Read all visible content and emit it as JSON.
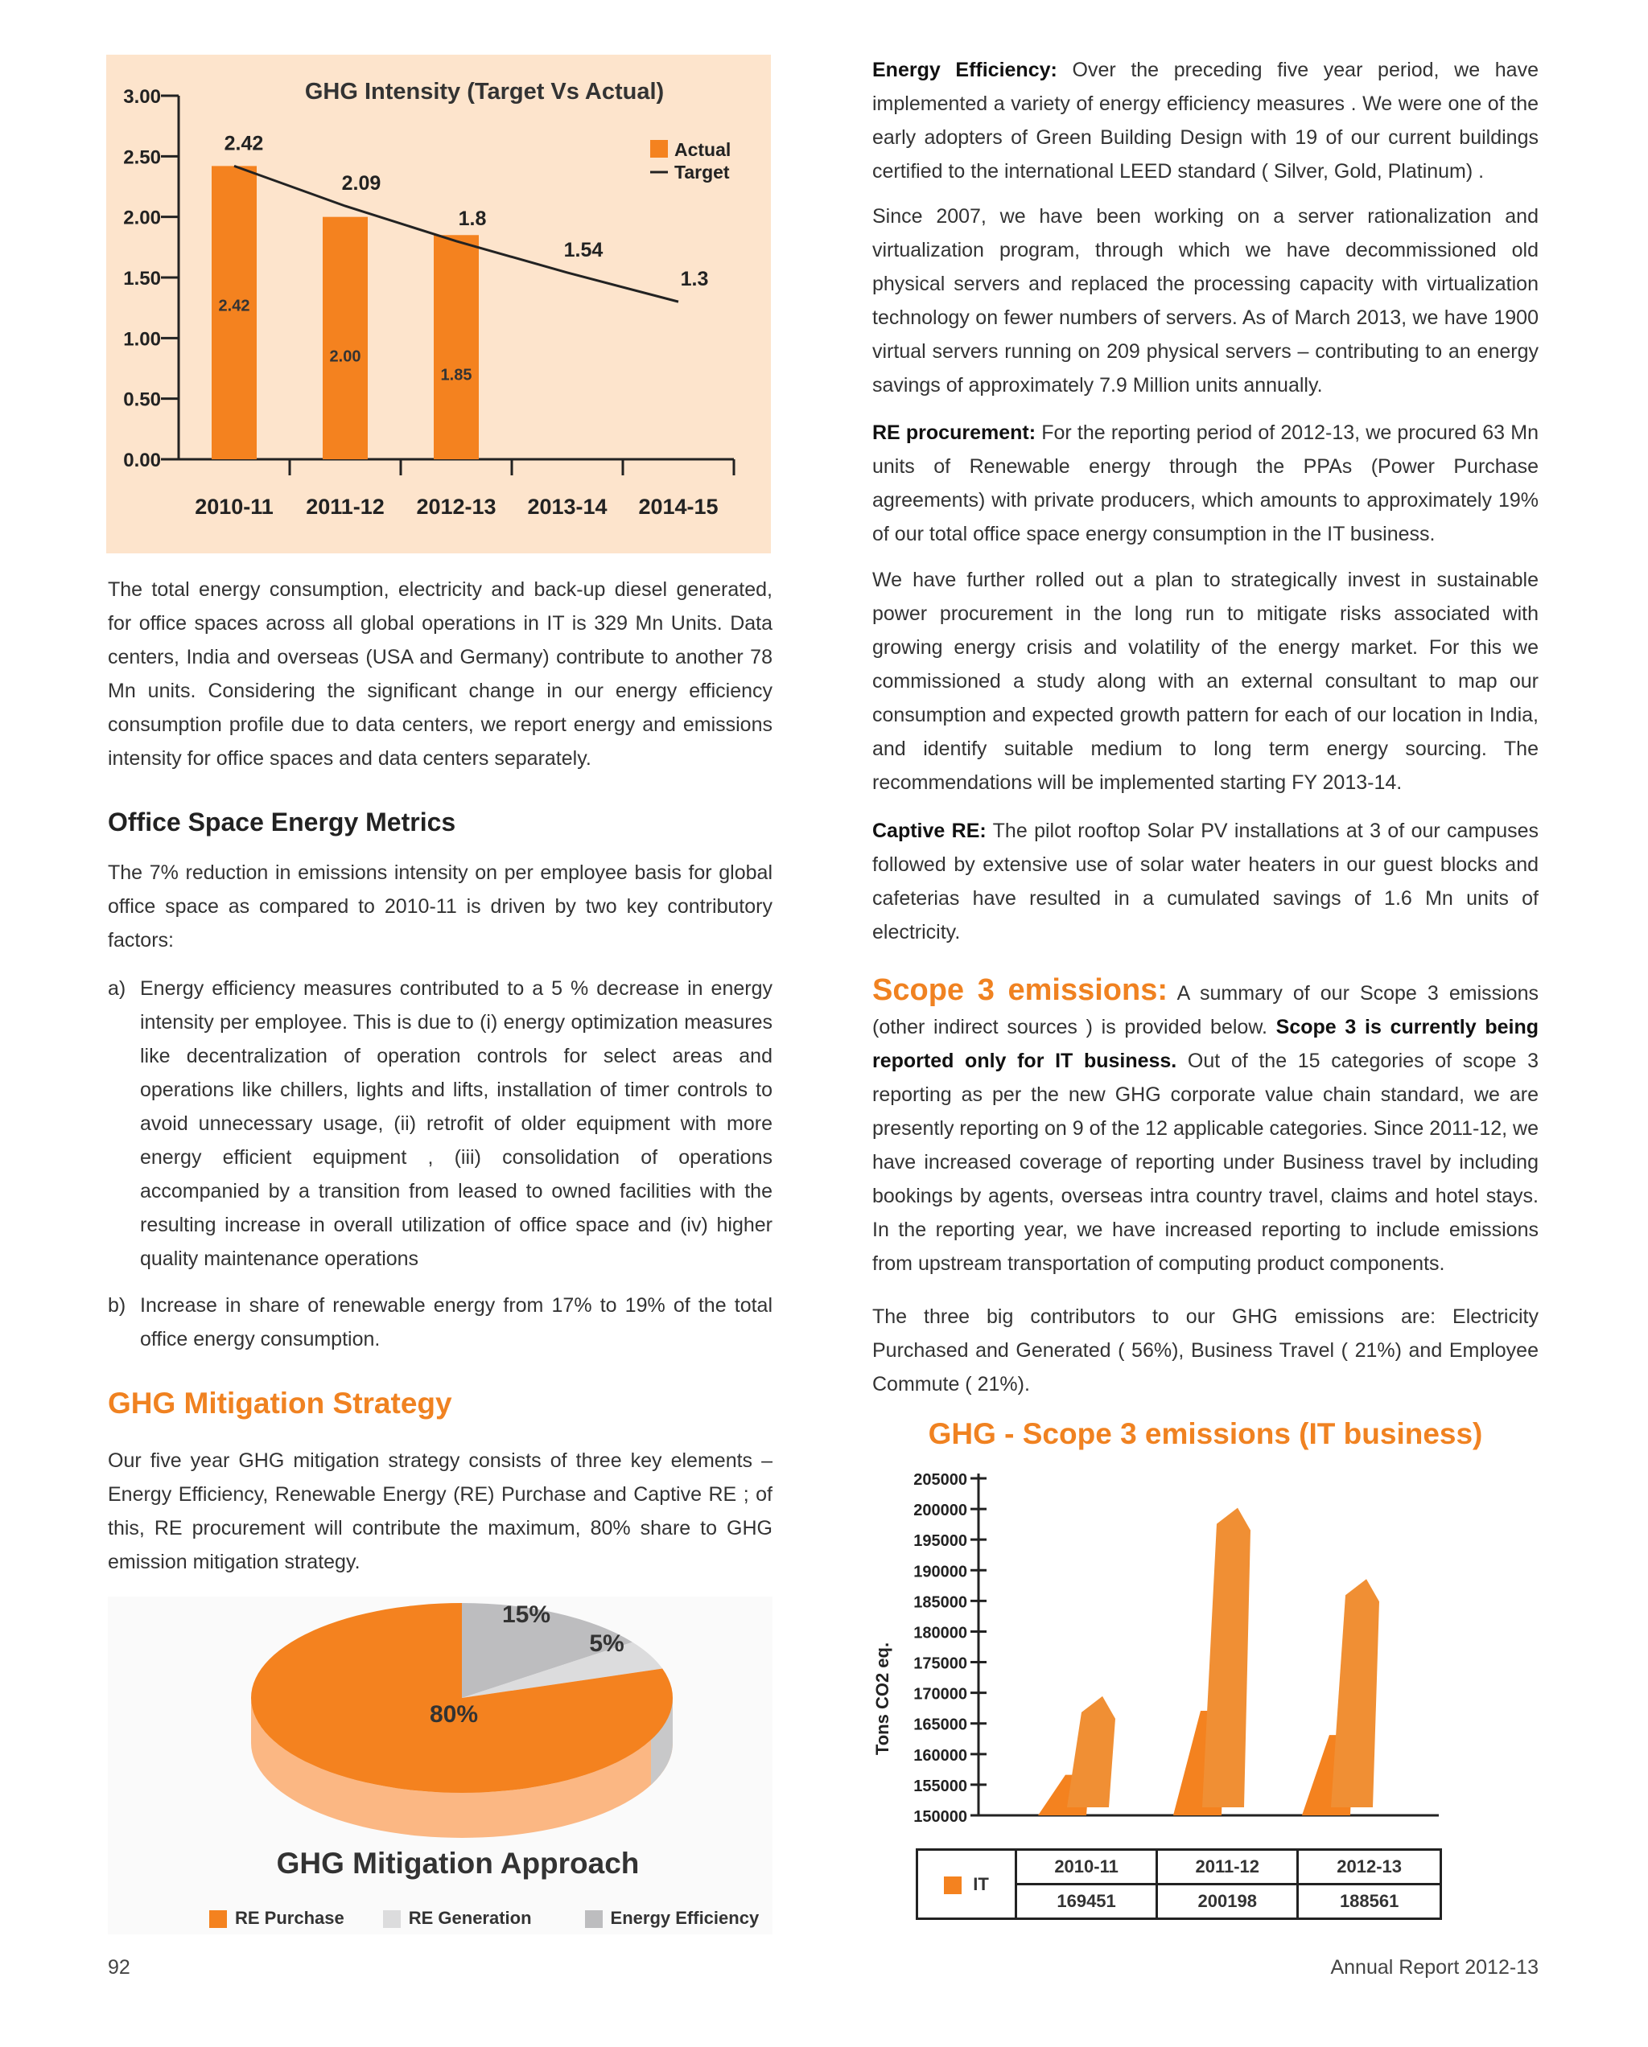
{
  "left": {
    "para1": "The total energy consumption, electricity and back-up diesel generated, for office spaces across all global operations in IT is 329 Mn Units.  Data centers, India and overseas (USA and Germany) contribute to another 78 Mn units. Considering the significant change in our energy efficiency consumption profile due to data centers, we report energy and emissions intensity for office spaces and data centers separately.",
    "office_heading": "Office Space Energy Metrics",
    "office_para": "The 7% reduction in emissions intensity on per employee basis for global office space as compared to 2010-11 is driven by two key contributory factors:",
    "item_a_marker": "a)",
    "item_a": "Energy efficiency measures contributed to a 5 % decrease in energy intensity per employee. This is due to  (i) energy optimization measures like decentralization of operation controls for select areas and operations like chillers, lights and lifts, installation of timer controls to avoid unnecessary usage, (ii) retrofit of older equipment with more energy efficient equipment , (iii) consolidation of operations accompanied by a transition from leased to owned facilities  with the resulting increase in  overall utilization of office space and (iv) higher quality maintenance operations",
    "item_b_marker": "b)",
    "item_b": "Increase in share of renewable energy from 17% to 19% of the total office energy consumption.",
    "mitigation_heading": "GHG Mitigation Strategy",
    "mitigation_para": "Our five year GHG mitigation strategy consists of three key elements – Energy Efficiency, Renewable Energy (RE) Purchase and Captive RE ; of this, RE procurement will contribute the maximum, 80% share to GHG emission mitigation strategy."
  },
  "right": {
    "ee_label": "Energy Efficiency:",
    "ee_text": " Over the preceding five year period, we have implemented a variety of energy efficiency measures .  We were one of the early adopters of Green Building Design with 19 of our current buildings certified to the international LEED standard ( Silver, Gold, Platinum) .",
    "server_para": "Since 2007, we have been working on a server rationalization and virtualization program, through which we have decommissioned old physical servers and replaced the processing capacity with virtualization technology on fewer numbers of servers. As of March 2013, we have 1900 virtual servers running on 209 physical servers – contributing to an energy savings of approximately 7.9 Million units annually.",
    "re_label": "RE procurement:",
    "re_text": "  For the reporting period of 2012-13, we procured 63 Mn units of Renewable energy through the PPAs (Power Purchase agreements) with private producers, which amounts to approximately 19% of our total office space energy consumption in the IT business.",
    "plan_para": "We have further rolled out a plan to strategically invest in sustainable power procurement in the long run to mitigate risks associated with growing energy crisis and volatility of the energy market. For this we commissioned a study along with an external consultant to map our consumption and expected growth pattern for each of our location in India, and identify suitable medium to long term energy sourcing.   The recommendations will be implemented starting FY 2013-14.",
    "captive_label": "Captive RE:",
    "captive_text": "  The pilot rooftop Solar PV installations at 3 of our campuses followed by extensive use of solar water heaters in our guest blocks and cafeterias have resulted in a cumulated savings of 1.6 Mn units of electricity.",
    "scope3_heading": "Scope 3 emissions:",
    "scope3_text1": " A summary of our Scope 3 emissions (other indirect sources ) is provided below.  ",
    "scope3_bold": "Scope 3 is currently being reported only for IT business.",
    "scope3_text2": "  Out of the 15 categories of scope 3 reporting as per the new GHG corporate value chain standard, we are presently reporting on 9 of the 12 applicable categories. Since 2011-12, we have increased coverage of reporting under Business travel by including bookings by agents, overseas intra country travel, claims and hotel stays. In the reporting year, we have increased reporting to include emissions from upstream transportation of computing product components.",
    "contrib_para": "The three big contributors to our GHG emissions are: Electricity Purchased and Generated ( 56%), Business Travel ( 21%) and Employee Commute ( 21%)."
  },
  "footer": {
    "page_number": "92",
    "report": "Annual Report 2012-13"
  },
  "chart_data": [
    {
      "type": "bar",
      "title": "GHG Intensity (Target Vs Actual)",
      "categories": [
        "2010-11",
        "2011-12",
        "2012-13",
        "2013-14",
        "2014-15"
      ],
      "yticks": [
        "3.00",
        "2.50",
        "2.00",
        "1.50",
        "1.00",
        "0.50",
        "0.00"
      ],
      "ylim": [
        0,
        3
      ],
      "series": [
        {
          "name": "Actual",
          "kind": "bar",
          "values": [
            2.42,
            2.0,
            1.85,
            null,
            null
          ],
          "labels": [
            "2.42",
            "2.00",
            "1.85",
            "",
            ""
          ],
          "color": "#f4821f"
        },
        {
          "name": "Target",
          "kind": "line",
          "values": [
            2.42,
            2.09,
            1.8,
            1.54,
            1.3
          ],
          "labels": [
            "2.42",
            "2.09",
            "1.8",
            "1.54",
            "1.3"
          ],
          "color": "#222222"
        }
      ],
      "legend": "top-right",
      "background": "#fde4cc"
    },
    {
      "type": "pie",
      "title": "GHG Mitigation Approach",
      "slices": [
        {
          "name": "RE Purchase",
          "value": 80,
          "label": "80%",
          "color": "#f4821f"
        },
        {
          "name": "Energy Efficiency",
          "value": 15,
          "label": "15%",
          "color": "#bdbdbf"
        },
        {
          "name": "RE Generation",
          "value": 5,
          "label": "5%",
          "color": "#dcdcdd"
        }
      ],
      "legend_order": [
        "RE Purchase",
        "RE Generation",
        "Energy Efficiency"
      ],
      "legend": "bottom"
    },
    {
      "type": "bar",
      "title": "GHG - Scope 3 emissions (IT business)",
      "ylabel": "Tons CO2 eq.",
      "ylim": [
        150000,
        205000
      ],
      "yticks": [
        "205000",
        "200000",
        "195000",
        "190000",
        "185000",
        "180000",
        "175000",
        "170000",
        "165000",
        "160000",
        "155000",
        "150000"
      ],
      "categories": [
        "2010-11",
        "2011-12",
        "2012-13"
      ],
      "series": [
        {
          "name": "IT",
          "values": [
            169451,
            200198,
            188561
          ],
          "color": "#f4821f"
        }
      ],
      "table": {
        "label": "IT",
        "values": [
          "169451",
          "200198",
          "188561"
        ]
      }
    }
  ]
}
